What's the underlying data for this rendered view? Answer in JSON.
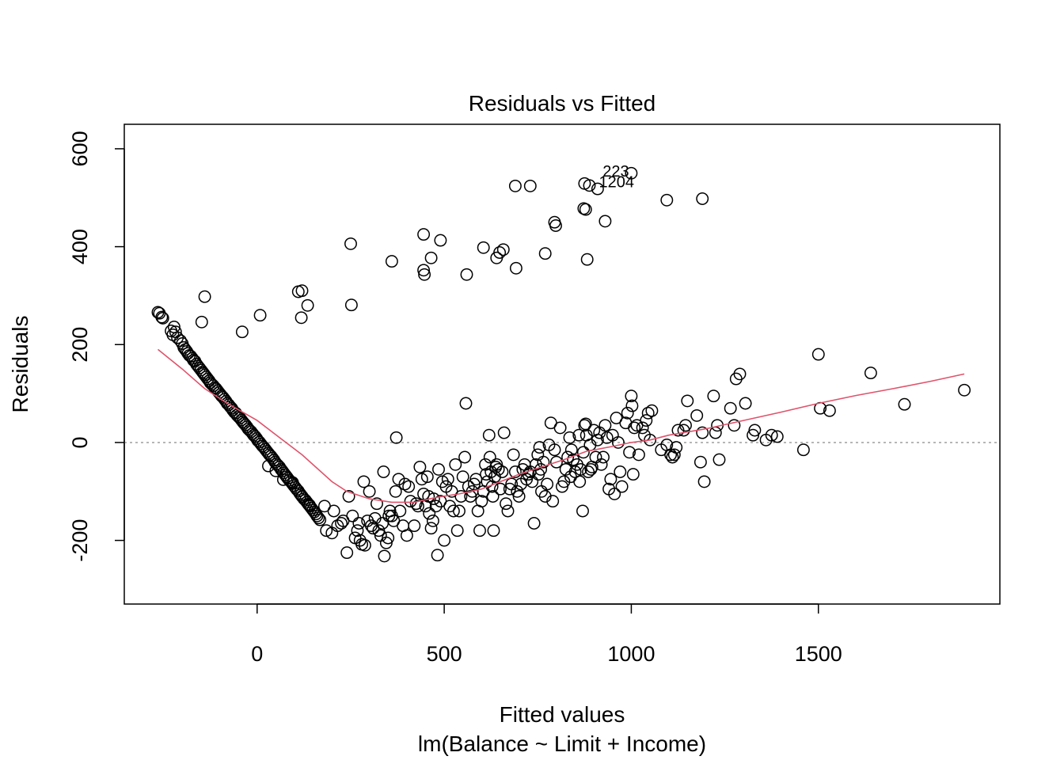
{
  "chart_data": {
    "type": "scatter",
    "title": "Residuals vs Fitted",
    "xlabel": "Fitted values",
    "subtitle": "lm(Balance ~ Limit + Income)",
    "ylabel": "Residuals",
    "xlim": [
      -355,
      1985
    ],
    "ylim": [
      -330,
      650
    ],
    "xticks": [
      0,
      500,
      1000,
      1500
    ],
    "yticks": [
      -200,
      0,
      200,
      400,
      600
    ],
    "reference_line": {
      "y": 0,
      "style": "dotted",
      "color": "#9e9e9e"
    },
    "point_color": "#000000",
    "smooth_color": "#df536b",
    "grid": false,
    "legend": false,
    "labeled_points": [
      {
        "label": "223",
        "x": 915,
        "y": 550
      },
      {
        "label": "1204",
        "x": 905,
        "y": 528
      }
    ],
    "smooth": [
      [
        -265,
        190
      ],
      [
        -200,
        150
      ],
      [
        -140,
        110
      ],
      [
        -80,
        80
      ],
      [
        0,
        45
      ],
      [
        60,
        10
      ],
      [
        120,
        -25
      ],
      [
        200,
        -80
      ],
      [
        240,
        -100
      ],
      [
        300,
        -115
      ],
      [
        360,
        -122
      ],
      [
        420,
        -122
      ],
      [
        480,
        -112
      ],
      [
        540,
        -105
      ],
      [
        600,
        -95
      ],
      [
        650,
        -80
      ],
      [
        700,
        -65
      ],
      [
        760,
        -50
      ],
      [
        820,
        -35
      ],
      [
        880,
        -18
      ],
      [
        950,
        -8
      ],
      [
        1000,
        0
      ],
      [
        1050,
        5
      ],
      [
        1100,
        15
      ],
      [
        1200,
        28
      ],
      [
        1300,
        45
      ],
      [
        1400,
        62
      ],
      [
        1500,
        80
      ],
      [
        1600,
        96
      ],
      [
        1700,
        110
      ],
      [
        1800,
        125
      ],
      [
        1890,
        140
      ]
    ],
    "points": [
      [
        -265,
        266
      ],
      [
        -261,
        264
      ],
      [
        -255,
        256
      ],
      [
        -252,
        254
      ],
      [
        -230,
        228
      ],
      [
        -225,
        220
      ],
      [
        -222,
        236
      ],
      [
        -218,
        226
      ],
      [
        -213,
        214
      ],
      [
        -205,
        208
      ],
      [
        -200,
        202
      ],
      [
        -196,
        194
      ],
      [
        -192,
        190
      ],
      [
        -188,
        186
      ],
      [
        -185,
        182
      ],
      [
        -181,
        178
      ],
      [
        -177,
        176
      ],
      [
        -173,
        172
      ],
      [
        -170,
        168
      ],
      [
        -166,
        166
      ],
      [
        -162,
        160
      ],
      [
        -158,
        156
      ],
      [
        -154,
        152
      ],
      [
        -150,
        148
      ],
      [
        -146,
        144
      ],
      [
        -143,
        141
      ],
      [
        -140,
        138
      ],
      [
        -136,
        134
      ],
      [
        -132,
        130
      ],
      [
        -128,
        126
      ],
      [
        -125,
        122
      ],
      [
        -121,
        119
      ],
      [
        -117,
        116
      ],
      [
        -113,
        112
      ],
      [
        -110,
        110
      ],
      [
        -106,
        106
      ],
      [
        -102,
        102
      ],
      [
        -98,
        98
      ],
      [
        -95,
        95
      ],
      [
        -91,
        92
      ],
      [
        -87,
        88
      ],
      [
        -83,
        84
      ],
      [
        -80,
        80
      ],
      [
        -76,
        77
      ],
      [
        -72,
        73
      ],
      [
        -68,
        70
      ],
      [
        -65,
        66
      ],
      [
        -61,
        62
      ],
      [
        -57,
        60
      ],
      [
        -54,
        56
      ],
      [
        -50,
        53
      ],
      [
        -46,
        50
      ],
      [
        -42,
        46
      ],
      [
        -38,
        42
      ],
      [
        -35,
        39
      ],
      [
        -31,
        36
      ],
      [
        -27,
        32
      ],
      [
        -24,
        28
      ],
      [
        -20,
        25
      ],
      [
        -16,
        22
      ],
      [
        -12,
        18
      ],
      [
        -9,
        15
      ],
      [
        -5,
        12
      ],
      [
        -1,
        8
      ],
      [
        2,
        4
      ],
      [
        6,
        1
      ],
      [
        10,
        -3
      ],
      [
        14,
        -7
      ],
      [
        18,
        -10
      ],
      [
        22,
        -14
      ],
      [
        26,
        -18
      ],
      [
        30,
        -22
      ],
      [
        33,
        -25
      ],
      [
        37,
        -28
      ],
      [
        41,
        -32
      ],
      [
        45,
        -36
      ],
      [
        48,
        -40
      ],
      [
        52,
        -44
      ],
      [
        56,
        -47
      ],
      [
        60,
        -50
      ],
      [
        64,
        -55
      ],
      [
        67,
        -58
      ],
      [
        71,
        -62
      ],
      [
        75,
        -66
      ],
      [
        79,
        -70
      ],
      [
        82,
        -73
      ],
      [
        86,
        -77
      ],
      [
        90,
        -80
      ],
      [
        94,
        -84
      ],
      [
        98,
        -88
      ],
      [
        102,
        -92
      ],
      [
        106,
        -96
      ],
      [
        110,
        -99
      ],
      [
        114,
        -104
      ],
      [
        117,
        -107
      ],
      [
        121,
        -111
      ],
      [
        125,
        -115
      ],
      [
        129,
        -118
      ],
      [
        133,
        -122
      ],
      [
        137,
        -126
      ],
      [
        141,
        -130
      ],
      [
        145,
        -134
      ],
      [
        149,
        -138
      ],
      [
        153,
        -142
      ],
      [
        157,
        -146
      ],
      [
        160,
        -150
      ],
      [
        164,
        -154
      ],
      [
        168,
        -158
      ],
      [
        30,
        -48
      ],
      [
        50,
        -58
      ],
      [
        70,
        -76
      ],
      [
        95,
        -82
      ],
      [
        120,
        -110
      ],
      [
        140,
        -128
      ],
      [
        -140,
        298
      ],
      [
        -148,
        246
      ],
      [
        -40,
        226
      ],
      [
        8,
        260
      ],
      [
        110,
        308
      ],
      [
        120,
        310
      ],
      [
        118,
        255
      ],
      [
        135,
        280
      ],
      [
        250,
        406
      ],
      [
        252,
        281
      ],
      [
        360,
        370
      ],
      [
        445,
        425
      ],
      [
        445,
        352
      ],
      [
        447,
        343
      ],
      [
        465,
        377
      ],
      [
        490,
        413
      ],
      [
        560,
        343
      ],
      [
        605,
        398
      ],
      [
        640,
        377
      ],
      [
        648,
        388
      ],
      [
        658,
        394
      ],
      [
        690,
        524
      ],
      [
        692,
        356
      ],
      [
        730,
        524
      ],
      [
        770,
        386
      ],
      [
        795,
        450
      ],
      [
        798,
        443
      ],
      [
        873,
        478
      ],
      [
        875,
        529
      ],
      [
        878,
        476
      ],
      [
        882,
        374
      ],
      [
        888,
        525
      ],
      [
        910,
        518
      ],
      [
        930,
        452
      ],
      [
        1000,
        550
      ],
      [
        1095,
        495
      ],
      [
        1190,
        498
      ],
      [
        180,
        -130
      ],
      [
        185,
        -180
      ],
      [
        200,
        -185
      ],
      [
        205,
        -140
      ],
      [
        215,
        -170
      ],
      [
        225,
        -165
      ],
      [
        230,
        -160
      ],
      [
        240,
        -225
      ],
      [
        245,
        -110
      ],
      [
        255,
        -150
      ],
      [
        262,
        -195
      ],
      [
        268,
        -180
      ],
      [
        272,
        -165
      ],
      [
        275,
        -200
      ],
      [
        280,
        -208
      ],
      [
        285,
        -80
      ],
      [
        288,
        -210
      ],
      [
        295,
        -160
      ],
      [
        300,
        -100
      ],
      [
        305,
        -170
      ],
      [
        310,
        -175
      ],
      [
        315,
        -155
      ],
      [
        320,
        -125
      ],
      [
        325,
        -180
      ],
      [
        330,
        -190
      ],
      [
        335,
        -165
      ],
      [
        338,
        -60
      ],
      [
        340,
        -232
      ],
      [
        345,
        -205
      ],
      [
        350,
        -195
      ],
      [
        352,
        -150
      ],
      [
        355,
        -140
      ],
      [
        360,
        -150
      ],
      [
        365,
        -160
      ],
      [
        370,
        -100
      ],
      [
        372,
        10
      ],
      [
        378,
        -75
      ],
      [
        382,
        -140
      ],
      [
        390,
        -170
      ],
      [
        395,
        -85
      ],
      [
        400,
        -190
      ],
      [
        405,
        -90
      ],
      [
        410,
        -120
      ],
      [
        420,
        -170
      ],
      [
        425,
        -125
      ],
      [
        430,
        -130
      ],
      [
        435,
        -50
      ],
      [
        440,
        -75
      ],
      [
        445,
        -105
      ],
      [
        450,
        -130
      ],
      [
        455,
        -70
      ],
      [
        458,
        -110
      ],
      [
        460,
        -145
      ],
      [
        465,
        -175
      ],
      [
        470,
        -160
      ],
      [
        472,
        -115
      ],
      [
        478,
        -130
      ],
      [
        482,
        -230
      ],
      [
        485,
        -55
      ],
      [
        490,
        -120
      ],
      [
        495,
        -80
      ],
      [
        500,
        -200
      ],
      [
        505,
        -90
      ],
      [
        510,
        -75
      ],
      [
        515,
        -130
      ],
      [
        520,
        -100
      ],
      [
        525,
        -140
      ],
      [
        530,
        -45
      ],
      [
        535,
        -180
      ],
      [
        540,
        -140
      ],
      [
        545,
        -110
      ],
      [
        550,
        -70
      ],
      [
        555,
        -30
      ],
      [
        558,
        80
      ],
      [
        565,
        -90
      ],
      [
        570,
        -110
      ],
      [
        575,
        -100
      ],
      [
        580,
        -85
      ],
      [
        585,
        -75
      ],
      [
        590,
        -140
      ],
      [
        595,
        -180
      ],
      [
        600,
        -120
      ],
      [
        605,
        -100
      ],
      [
        610,
        -45
      ],
      [
        612,
        -65
      ],
      [
        615,
        -80
      ],
      [
        620,
        15
      ],
      [
        622,
        -30
      ],
      [
        625,
        -60
      ],
      [
        628,
        -90
      ],
      [
        630,
        -110
      ],
      [
        632,
        -180
      ],
      [
        635,
        -70
      ],
      [
        638,
        -50
      ],
      [
        640,
        -45
      ],
      [
        645,
        -55
      ],
      [
        650,
        -95
      ],
      [
        655,
        -60
      ],
      [
        660,
        20
      ],
      [
        665,
        -125
      ],
      [
        670,
        -140
      ],
      [
        675,
        -95
      ],
      [
        680,
        -85
      ],
      [
        685,
        -25
      ],
      [
        690,
        -60
      ],
      [
        695,
        -100
      ],
      [
        700,
        -110
      ],
      [
        705,
        -85
      ],
      [
        710,
        -55
      ],
      [
        715,
        -45
      ],
      [
        720,
        -75
      ],
      [
        725,
        -65
      ],
      [
        730,
        -60
      ],
      [
        735,
        -80
      ],
      [
        740,
        -165
      ],
      [
        745,
        -45
      ],
      [
        750,
        -25
      ],
      [
        752,
        -65
      ],
      [
        755,
        -10
      ],
      [
        758,
        -55
      ],
      [
        760,
        -100
      ],
      [
        765,
        -40
      ],
      [
        770,
        -110
      ],
      [
        775,
        -85
      ],
      [
        780,
        -5
      ],
      [
        785,
        40
      ],
      [
        790,
        -120
      ],
      [
        795,
        -15
      ],
      [
        800,
        -40
      ],
      [
        810,
        30
      ],
      [
        815,
        -90
      ],
      [
        820,
        -80
      ],
      [
        825,
        -55
      ],
      [
        830,
        -30
      ],
      [
        835,
        10
      ],
      [
        838,
        -70
      ],
      [
        840,
        -15
      ],
      [
        845,
        -35
      ],
      [
        850,
        -60
      ],
      [
        855,
        -45
      ],
      [
        860,
        15
      ],
      [
        862,
        -80
      ],
      [
        865,
        -55
      ],
      [
        870,
        -140
      ],
      [
        872,
        -20
      ],
      [
        875,
        35
      ],
      [
        878,
        38
      ],
      [
        880,
        15
      ],
      [
        885,
        -60
      ],
      [
        890,
        -5
      ],
      [
        892,
        -55
      ],
      [
        895,
        -50
      ],
      [
        900,
        25
      ],
      [
        905,
        -30
      ],
      [
        910,
        5
      ],
      [
        915,
        20
      ],
      [
        920,
        -45
      ],
      [
        925,
        -30
      ],
      [
        930,
        35
      ],
      [
        935,
        10
      ],
      [
        940,
        -95
      ],
      [
        945,
        -75
      ],
      [
        950,
        15
      ],
      [
        955,
        -105
      ],
      [
        960,
        50
      ],
      [
        965,
        0
      ],
      [
        970,
        -60
      ],
      [
        975,
        -90
      ],
      [
        985,
        40
      ],
      [
        990,
        60
      ],
      [
        995,
        -20
      ],
      [
        1000,
        95
      ],
      [
        1002,
        75
      ],
      [
        1005,
        -65
      ],
      [
        1008,
        30
      ],
      [
        1015,
        35
      ],
      [
        1020,
        -25
      ],
      [
        1030,
        30
      ],
      [
        1035,
        15
      ],
      [
        1040,
        45
      ],
      [
        1045,
        60
      ],
      [
        1050,
        5
      ],
      [
        1055,
        65
      ],
      [
        1080,
        -15
      ],
      [
        1095,
        -5
      ],
      [
        1105,
        -25
      ],
      [
        1110,
        -30
      ],
      [
        1115,
        -25
      ],
      [
        1120,
        -10
      ],
      [
        1125,
        25
      ],
      [
        1140,
        25
      ],
      [
        1145,
        35
      ],
      [
        1150,
        85
      ],
      [
        1175,
        55
      ],
      [
        1185,
        -40
      ],
      [
        1190,
        20
      ],
      [
        1195,
        -80
      ],
      [
        1220,
        95
      ],
      [
        1225,
        20
      ],
      [
        1230,
        35
      ],
      [
        1235,
        -35
      ],
      [
        1265,
        70
      ],
      [
        1275,
        35
      ],
      [
        1280,
        130
      ],
      [
        1290,
        140
      ],
      [
        1305,
        80
      ],
      [
        1325,
        15
      ],
      [
        1330,
        25
      ],
      [
        1360,
        5
      ],
      [
        1375,
        15
      ],
      [
        1390,
        12
      ],
      [
        1460,
        -15
      ],
      [
        1500,
        180
      ],
      [
        1505,
        70
      ],
      [
        1530,
        65
      ],
      [
        1640,
        142
      ],
      [
        1730,
        78
      ],
      [
        1890,
        107
      ]
    ]
  }
}
